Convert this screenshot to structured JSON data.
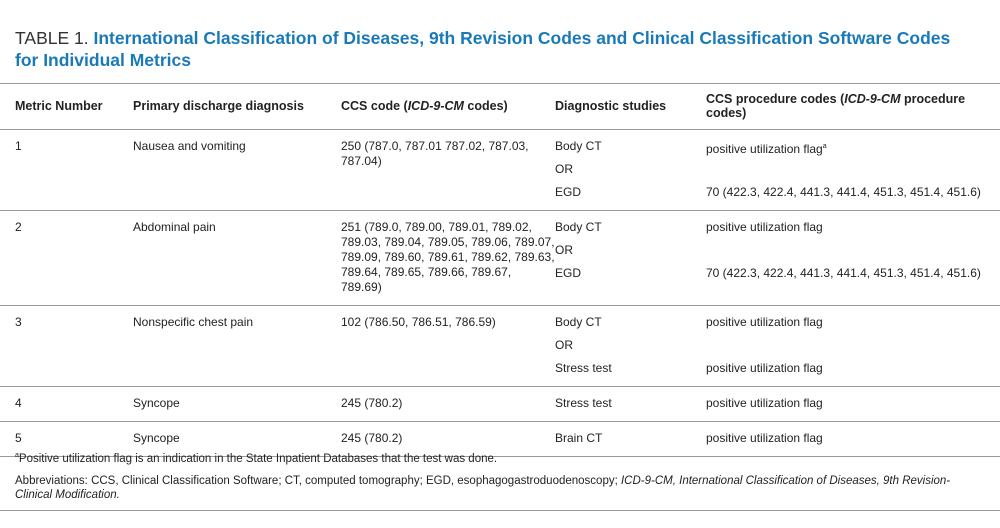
{
  "title": {
    "label": "TABLE 1.",
    "text": "International Classification of Diseases, 9th Revision Codes and Clinical Classification Software Codes for Individual Metrics"
  },
  "table": {
    "headers": [
      [
        "Metric Number"
      ],
      [
        "Primary discharge diagnosis"
      ],
      [
        "CCS code (",
        "ICD-9-CM",
        " codes)"
      ],
      [
        "Diagnostic studies"
      ],
      [
        "CCS procedure codes (",
        "ICD-9-CM",
        " procedure codes)"
      ]
    ],
    "rows": [
      {
        "metric": "1",
        "diagnosis": "Nausea and vomiting",
        "ccs": "250 (787.0, 787.01 787.02, 787.03, 787.04)",
        "studies": [
          {
            "study": "Body CT",
            "procedure": "positive utilization flag",
            "note": "a"
          },
          {
            "study": "OR"
          },
          {
            "study": "EGD",
            "procedure": "70 (422.3, 422.4, 441.3, 441.4, 451.3, 451.4, 451.6)"
          }
        ]
      },
      {
        "metric": "2",
        "diagnosis": "Abdominal pain",
        "ccs": "251 (789.0, 789.00, 789.01, 789.02, 789.03, 789.04, 789.05, 789.06, 789.07, 789.09, 789.60, 789.61, 789.62, 789.63, 789.64, 789.65, 789.66, 789.67, 789.69)",
        "studies": [
          {
            "study": "Body CT",
            "procedure": "positive utilization flag"
          },
          {
            "study": "OR"
          },
          {
            "study": "EGD",
            "procedure": "70 (422.3, 422.4, 441.3, 441.4, 451.3, 451.4, 451.6)"
          }
        ]
      },
      {
        "metric": "3",
        "diagnosis": "Nonspecific chest pain",
        "ccs": "102 (786.50, 786.51, 786.59)",
        "studies": [
          {
            "study": "Body CT",
            "procedure": "positive utilization flag"
          },
          {
            "study": "OR"
          },
          {
            "study": "Stress test",
            "procedure": "positive utilization flag"
          }
        ]
      },
      {
        "metric": "4",
        "diagnosis": "Syncope",
        "ccs": "245 (780.2)",
        "studies": [
          {
            "study": "Stress test",
            "procedure": "positive utilization flag"
          }
        ]
      },
      {
        "metric": "5",
        "diagnosis": "Syncope",
        "ccs": "245 (780.2)",
        "studies": [
          {
            "study": "Brain CT",
            "procedure": "positive utilization flag"
          }
        ]
      }
    ]
  },
  "footnotes": {
    "note": {
      "mark": "a",
      "text": "Positive utilization flag is an indication in the State Inpatient Databases that the test was done."
    },
    "abbreviations": [
      "Abbreviations: CCS, Clinical Classification Software; CT, computed tomography; EGD, esophagogastroduodenoscopy; ",
      "ICD-9-CM, International Classification of Diseases, 9th Revision-Clinical Modification."
    ]
  }
}
